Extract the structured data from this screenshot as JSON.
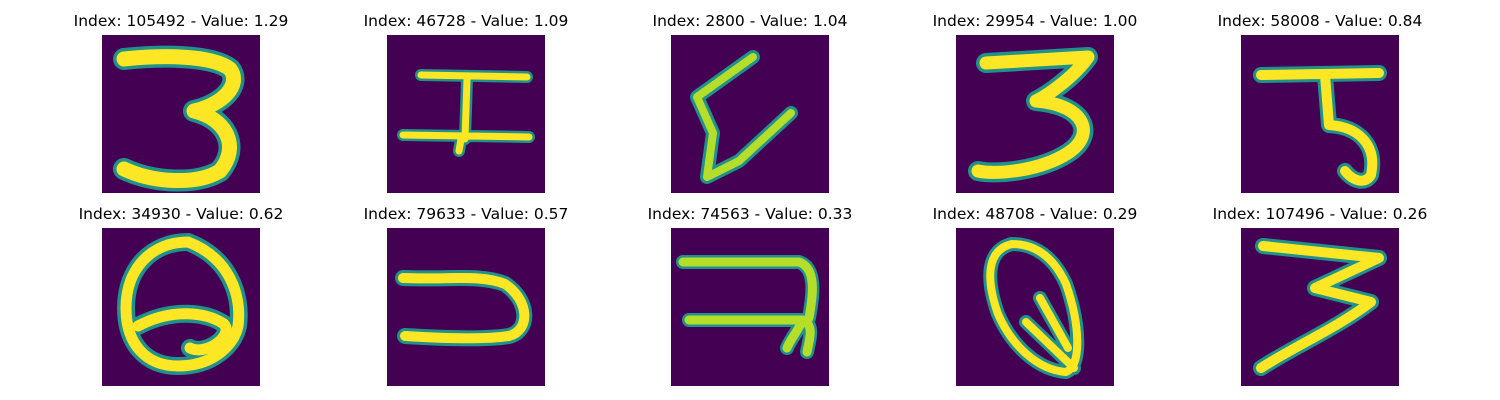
{
  "palette": {
    "background": "#440154",
    "stroke_light": "#fde725",
    "stroke_mid": "#b5de2b",
    "stroke_dark": "#21918c"
  },
  "panels": [
    {
      "title": "Index: 105492 - Value: 1.29",
      "glyph": "digit-three-like"
    },
    {
      "title": "Index: 46728 - Value: 1.09",
      "glyph": "i-bar-like"
    },
    {
      "title": "Index: 2800 - Value: 1.04",
      "glyph": "zigzag-like"
    },
    {
      "title": "Index: 29954 - Value: 1.00",
      "glyph": "digit-three-like"
    },
    {
      "title": "Index: 58008 - Value: 0.84",
      "glyph": "hooked-t-like"
    },
    {
      "title": "Index: 34930 - Value: 0.62",
      "glyph": "loop-q-like"
    },
    {
      "title": "Index: 79633 - Value: 0.57",
      "glyph": "u-like"
    },
    {
      "title": "Index: 74563 - Value: 0.33",
      "glyph": "backwards-e-like"
    },
    {
      "title": "Index: 48708 - Value: 0.29",
      "glyph": "loop-tail-like"
    },
    {
      "title": "Index: 107496 - Value: 0.26",
      "glyph": "digit-three-like"
    }
  ]
}
